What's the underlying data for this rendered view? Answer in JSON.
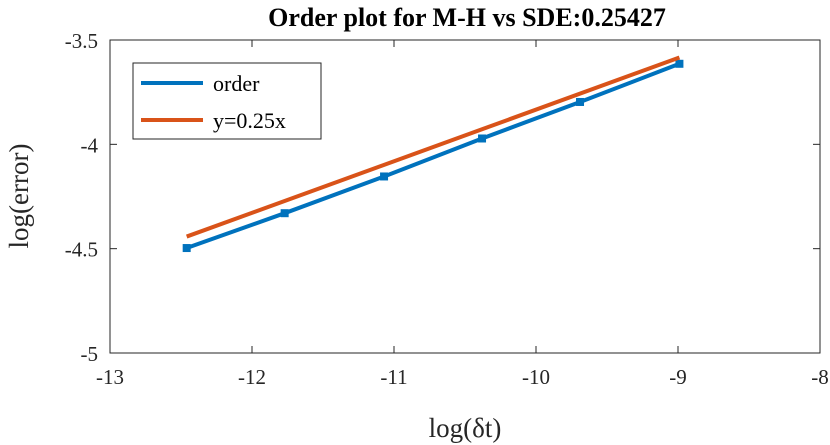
{
  "chart_data": {
    "type": "line",
    "title": "Order plot for M-H vs SDE:0.25427",
    "xlabel": "log(δt)",
    "ylabel": "log(error)",
    "xlim": [
      -13,
      -8
    ],
    "ylim": [
      -5,
      -3.5
    ],
    "xticks": [
      -13,
      -12,
      -11,
      -10,
      -9,
      -8
    ],
    "yticks": [
      -5,
      -4.5,
      -4,
      -3.5
    ],
    "xtick_labels": [
      "-13",
      "-12",
      "-11",
      "-10",
      "-9",
      "-8"
    ],
    "ytick_labels": [
      "-5",
      "-4.5",
      "-4",
      "-3.5"
    ],
    "grid": false,
    "legend_position": "top-left",
    "series": [
      {
        "name": "order",
        "color": "#0072BD",
        "marker": "square",
        "x": [
          -12.46,
          -11.77,
          -11.07,
          -10.38,
          -9.69,
          -8.99
        ],
        "y": [
          -4.497,
          -4.33,
          -4.154,
          -3.972,
          -3.797,
          -3.614
        ]
      },
      {
        "name": "y=0.25x",
        "color": "#D95319",
        "marker": "none",
        "x": [
          -12.46,
          -8.99
        ],
        "y": [
          -4.442,
          -3.584
        ]
      }
    ]
  }
}
